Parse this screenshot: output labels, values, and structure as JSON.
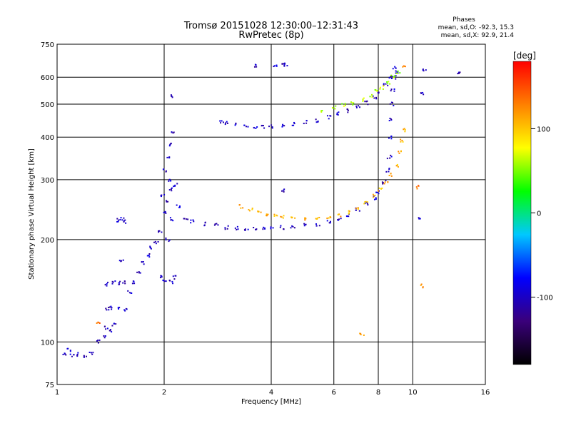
{
  "title": {
    "line1": "Tromsø 20151028 12:30:00–12:31:43",
    "line2": "RwPretec (8p)"
  },
  "phases_box": {
    "heading": "Phases",
    "o_line": "mean, sd,O: -92.3, 15.3",
    "x_line": "mean, sd,X:  92.9, 21.4"
  },
  "chart_data": {
    "type": "scatter",
    "xlabel": "Frequency [MHz]",
    "ylabel": "Stationary phase Virtual Height [km]",
    "x_scale": "log2",
    "y_scale": "log",
    "xlim": [
      1,
      16
    ],
    "ylim": [
      75,
      750
    ],
    "x_ticks": [
      1,
      2,
      4,
      6,
      8,
      10,
      16
    ],
    "y_ticks": [
      75,
      100,
      200,
      300,
      400,
      500,
      600,
      750
    ],
    "grid": true,
    "colorbar": {
      "label": "[deg]",
      "range": [
        -180,
        180
      ],
      "ticks": [
        100,
        0,
        -100
      ],
      "colors": [
        "#000000",
        "#3a007a",
        "#0000ff",
        "#00c8ff",
        "#00ff00",
        "#ffff00",
        "#ff8000",
        "#ff0000"
      ]
    },
    "series": [
      {
        "phase": -100,
        "points": [
          [
            1.0,
            91
          ],
          [
            1.05,
            92
          ],
          [
            1.1,
            91
          ],
          [
            1.15,
            92
          ],
          [
            1.2,
            91
          ],
          [
            1.25,
            93
          ],
          [
            1.08,
            95
          ],
          [
            1.3,
            100
          ],
          [
            1.35,
            104
          ],
          [
            1.38,
            110
          ],
          [
            1.42,
            108
          ],
          [
            1.45,
            112
          ],
          [
            1.38,
            125
          ],
          [
            1.42,
            126
          ],
          [
            1.48,
            126
          ],
          [
            1.55,
            125
          ],
          [
            1.38,
            148
          ],
          [
            1.45,
            150
          ],
          [
            1.5,
            149
          ],
          [
            1.55,
            150
          ],
          [
            1.52,
            172
          ],
          [
            1.48,
            228
          ],
          [
            1.52,
            230
          ],
          [
            1.55,
            226
          ]
        ]
      },
      {
        "phase": -100,
        "points": [
          [
            1.6,
            140
          ],
          [
            1.65,
            150
          ],
          [
            1.7,
            160
          ],
          [
            1.75,
            170
          ],
          [
            1.8,
            180
          ],
          [
            1.85,
            190
          ],
          [
            1.9,
            195
          ],
          [
            1.95,
            210
          ],
          [
            2.0,
            240
          ],
          [
            2.05,
            260
          ],
          [
            2.1,
            280
          ],
          [
            2.15,
            290
          ],
          [
            1.95,
            155
          ],
          [
            2.0,
            150
          ],
          [
            2.1,
            150
          ],
          [
            2.15,
            155
          ],
          [
            2.05,
            200
          ],
          [
            2.1,
            230
          ],
          [
            2.0,
            320
          ],
          [
            2.05,
            350
          ],
          [
            2.1,
            380
          ],
          [
            2.12,
            410
          ],
          [
            2.08,
            300
          ],
          [
            1.98,
            270
          ]
        ]
      },
      {
        "phase": -100,
        "points": [
          [
            2.2,
            250
          ],
          [
            2.3,
            232
          ],
          [
            2.4,
            226
          ],
          [
            2.6,
            222
          ],
          [
            2.8,
            220
          ],
          [
            3.0,
            217
          ],
          [
            3.2,
            216
          ],
          [
            3.4,
            215
          ],
          [
            3.6,
            215
          ],
          [
            3.8,
            215
          ],
          [
            4.0,
            216
          ],
          [
            4.3,
            217
          ],
          [
            4.6,
            218
          ],
          [
            5.0,
            220
          ],
          [
            5.4,
            222
          ],
          [
            5.8,
            225
          ],
          [
            6.2,
            228
          ],
          [
            6.6,
            235
          ],
          [
            7.0,
            245
          ],
          [
            7.4,
            255
          ],
          [
            7.8,
            265
          ],
          [
            8.0,
            275
          ],
          [
            8.3,
            295
          ],
          [
            8.5,
            320
          ],
          [
            8.6,
            350
          ],
          [
            8.65,
            400
          ],
          [
            8.7,
            450
          ],
          [
            8.75,
            500
          ],
          [
            8.8,
            550
          ],
          [
            8.85,
            600
          ],
          [
            8.9,
            640
          ]
        ]
      },
      {
        "phase": -100,
        "points": [
          [
            2.9,
            445
          ],
          [
            3.0,
            440
          ],
          [
            3.2,
            434
          ],
          [
            3.4,
            430
          ],
          [
            3.6,
            428
          ],
          [
            3.8,
            428
          ],
          [
            4.0,
            430
          ],
          [
            4.3,
            432
          ],
          [
            4.6,
            436
          ],
          [
            5.0,
            442
          ],
          [
            5.4,
            448
          ],
          [
            5.8,
            458
          ],
          [
            6.2,
            468
          ],
          [
            6.6,
            478
          ],
          [
            7.0,
            490
          ],
          [
            7.4,
            505
          ],
          [
            7.8,
            525
          ],
          [
            8.1,
            545
          ],
          [
            8.4,
            570
          ],
          [
            8.7,
            600
          ],
          [
            9.0,
            620
          ]
        ]
      },
      {
        "phase": 110,
        "points": [
          [
            3.3,
            250
          ],
          [
            3.5,
            244
          ],
          [
            3.7,
            240
          ],
          [
            3.9,
            237
          ],
          [
            4.1,
            235
          ],
          [
            4.3,
            233
          ],
          [
            4.6,
            232
          ],
          [
            5.0,
            231
          ],
          [
            5.4,
            230
          ],
          [
            5.8,
            232
          ],
          [
            6.2,
            235
          ],
          [
            6.6,
            240
          ],
          [
            7.0,
            248
          ],
          [
            7.4,
            258
          ],
          [
            7.8,
            268
          ],
          [
            8.1,
            280
          ],
          [
            8.4,
            295
          ],
          [
            8.7,
            310
          ],
          [
            9.0,
            330
          ],
          [
            9.2,
            360
          ],
          [
            9.3,
            390
          ],
          [
            9.4,
            420
          ]
        ]
      },
      {
        "phase": 60,
        "points": [
          [
            5.6,
            478
          ],
          [
            6.0,
            488
          ],
          [
            6.4,
            496
          ],
          [
            6.8,
            504
          ],
          [
            7.2,
            516
          ],
          [
            7.6,
            530
          ],
          [
            7.9,
            545
          ],
          [
            8.2,
            560
          ],
          [
            8.5,
            578
          ],
          [
            8.8,
            600
          ],
          [
            9.1,
            620
          ]
        ]
      },
      {
        "phase": -100,
        "points": [
          [
            3.6,
            650
          ],
          [
            4.1,
            648
          ],
          [
            4.3,
            650
          ],
          [
            4.4,
            652
          ],
          [
            2.1,
            530
          ],
          [
            10.6,
            535
          ],
          [
            13.5,
            615
          ],
          [
            10.8,
            630
          ],
          [
            10.4,
            232
          ],
          [
            4.3,
            278
          ]
        ]
      },
      {
        "phase": 130,
        "points": [
          [
            10.6,
            146
          ],
          [
            7.2,
            105
          ],
          [
            1.3,
            113
          ],
          [
            10.4,
            285
          ],
          [
            9.4,
            640
          ]
        ]
      }
    ]
  }
}
